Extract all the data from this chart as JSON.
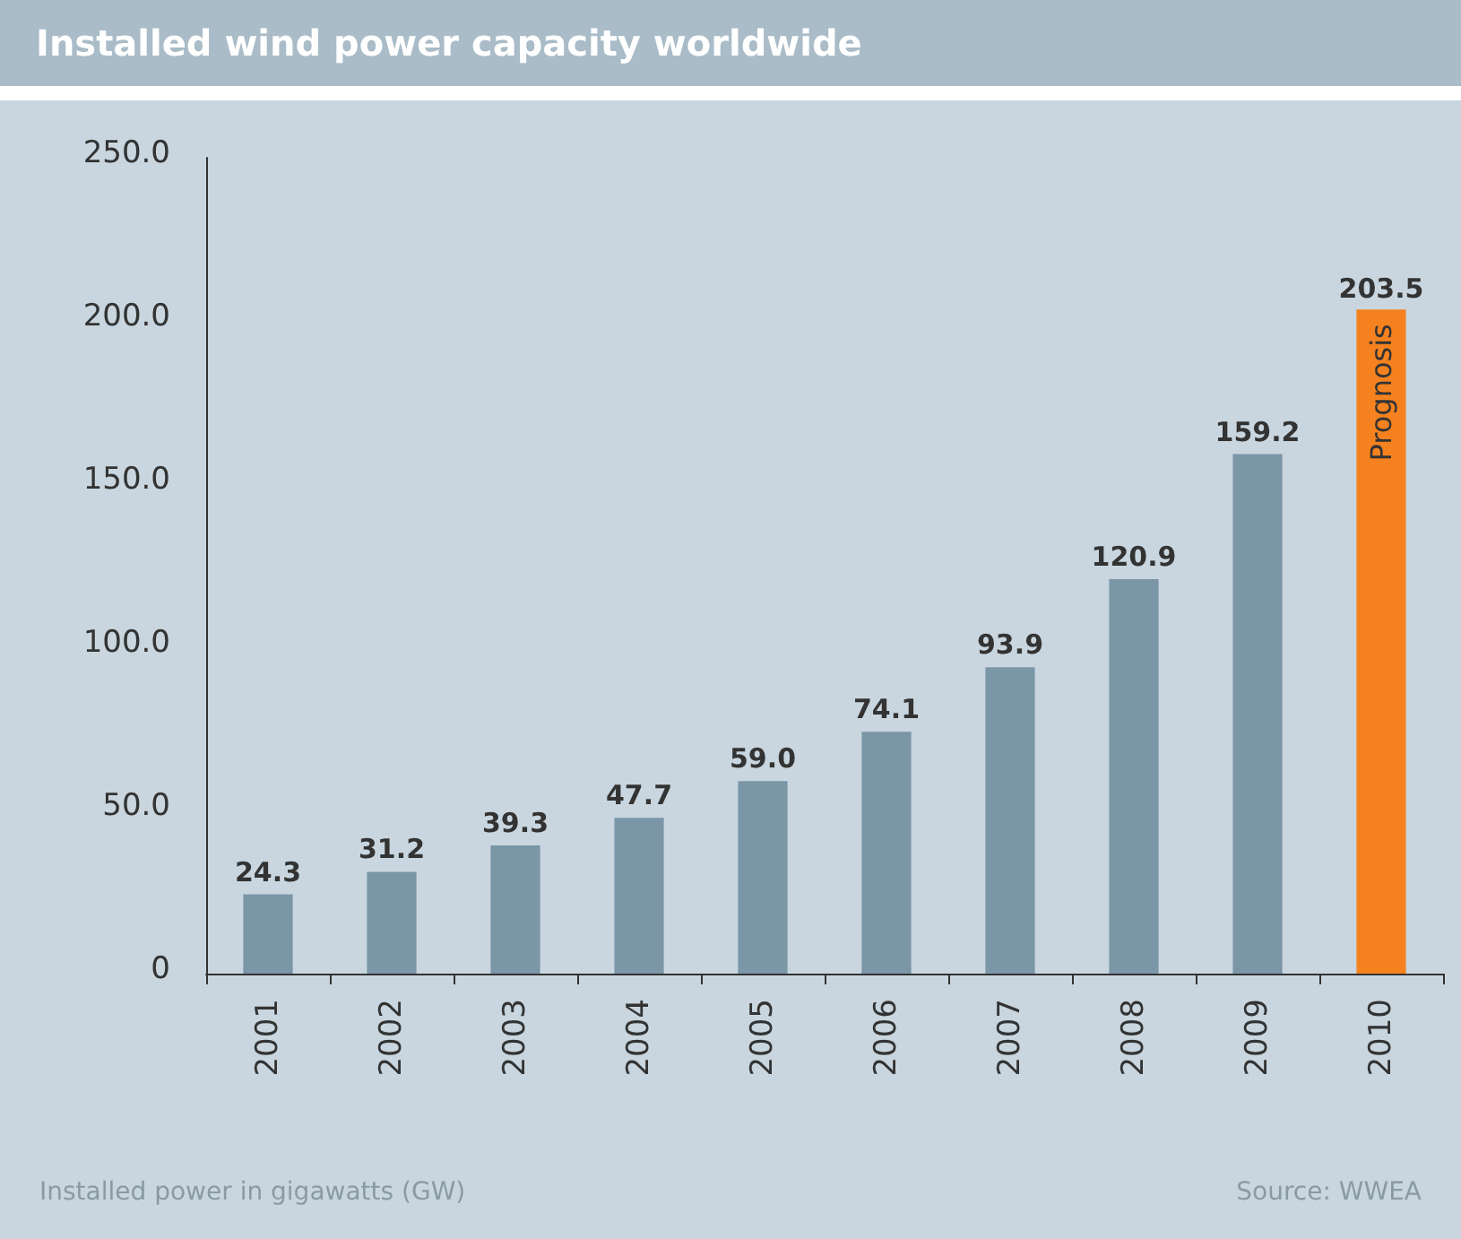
{
  "chart_data": {
    "type": "bar",
    "title": "Installed wind power capacity worldwide",
    "categories": [
      "2001",
      "2002",
      "2003",
      "2004",
      "2005",
      "2006",
      "2007",
      "2008",
      "2009",
      "2010"
    ],
    "values": [
      24.3,
      31.2,
      39.3,
      47.7,
      59.0,
      74.1,
      93.9,
      120.9,
      159.2,
      203.5
    ],
    "colors": [
      "#7b96a7",
      "#7b96a7",
      "#7b96a7",
      "#7b96a7",
      "#7b96a7",
      "#7b96a7",
      "#7b96a7",
      "#7b96a7",
      "#7b96a7",
      "#f5821f"
    ],
    "value_labels": [
      "24.3",
      "31.2",
      "39.3",
      "47.7",
      "59.0",
      "74.1",
      "93.9",
      "120.9",
      "159.2",
      "203.5"
    ],
    "ylim": [
      0,
      250
    ],
    "yticks": [
      0,
      {
        "value": 50,
        "label": "50.0"
      },
      {
        "value": 100,
        "label": "100.0"
      },
      {
        "value": 150,
        "label": "150.0"
      },
      {
        "value": 200,
        "label": "200.0"
      },
      {
        "value": 250,
        "label": "250.0"
      }
    ],
    "annotations": [
      "Prognosis",
      "Installed power in gigawatts (GW)",
      "Source: WWEA"
    ]
  }
}
